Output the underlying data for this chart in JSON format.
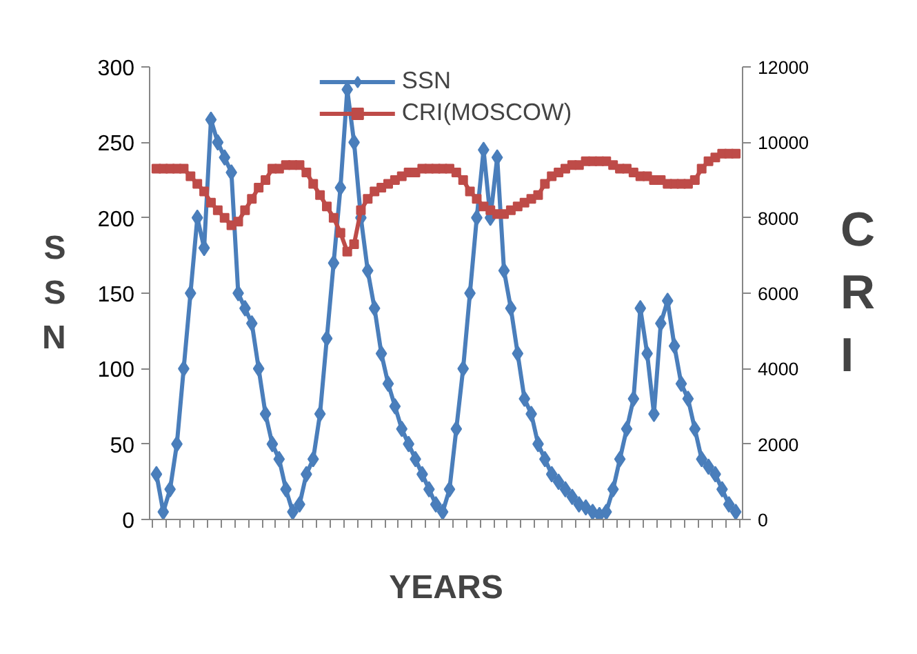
{
  "chart_data": {
    "type": "line",
    "xlabel": "YEARS",
    "ylabel": "SSN",
    "y2label": "CRI",
    "categories": [
      null,
      null,
      null,
      null,
      null,
      null,
      null,
      null,
      null,
      null,
      null,
      null,
      null,
      null,
      null,
      null,
      null,
      null,
      null,
      null,
      null,
      null,
      null,
      null,
      null,
      null,
      null,
      null,
      null,
      null,
      null,
      null,
      null,
      null,
      null,
      null,
      null,
      null,
      null,
      null,
      null,
      null,
      null,
      null,
      null,
      null,
      null,
      null,
      null,
      null,
      null,
      null,
      null,
      null,
      null,
      null,
      null,
      null,
      null,
      null,
      null,
      null,
      null,
      null,
      null,
      null,
      null,
      null,
      null,
      null,
      null,
      null,
      null,
      null,
      null,
      null,
      null,
      null,
      null,
      null,
      null,
      null,
      null,
      null,
      null,
      null
    ],
    "ylim": [
      0,
      300
    ],
    "yticks": [
      0,
      50,
      100,
      150,
      200,
      250,
      300
    ],
    "y2lim": [
      0,
      12000
    ],
    "y2ticks": [
      0,
      2000,
      4000,
      6000,
      8000,
      10000,
      12000
    ],
    "grid": false,
    "legend": "top",
    "line_style": "solid",
    "series": [
      {
        "name": "SSN",
        "color": "#4a7ebb",
        "marker": "diamond",
        "values": [
          30,
          5,
          20,
          50,
          100,
          150,
          200,
          180,
          265,
          250,
          240,
          230,
          150,
          140,
          130,
          100,
          70,
          50,
          40,
          20,
          5,
          10,
          30,
          40,
          70,
          120,
          170,
          220,
          285,
          250,
          200,
          165,
          140,
          110,
          90,
          75,
          60,
          50,
          40,
          30,
          20,
          10,
          5,
          20,
          60,
          100,
          150,
          200,
          245,
          200,
          240,
          165,
          140,
          110,
          80,
          70,
          50,
          40,
          30,
          25,
          20,
          15,
          10,
          8,
          5,
          3,
          5,
          20,
          40,
          60,
          80,
          140,
          110,
          70,
          130,
          145,
          115,
          90,
          80,
          60,
          40,
          35,
          30,
          20,
          10,
          5
        ]
      },
      {
        "name": "CRI(MOSCOW)",
        "color": "#be4b48",
        "marker": "square",
        "axis": "y2",
        "values": [
          9300,
          9300,
          9300,
          9300,
          9300,
          9100,
          8900,
          8700,
          8400,
          8200,
          8000,
          7800,
          7900,
          8200,
          8500,
          8800,
          9000,
          9300,
          9300,
          9400,
          9400,
          9400,
          9200,
          8900,
          8600,
          8300,
          8000,
          7600,
          7100,
          7300,
          8200,
          8500,
          8700,
          8800,
          8900,
          9000,
          9100,
          9200,
          9200,
          9300,
          9300,
          9300,
          9300,
          9300,
          9200,
          9000,
          8700,
          8500,
          8300,
          8200,
          8100,
          8100,
          8200,
          8300,
          8400,
          8500,
          8600,
          8900,
          9100,
          9200,
          9300,
          9400,
          9400,
          9500,
          9500,
          9500,
          9500,
          9400,
          9300,
          9300,
          9200,
          9100,
          9100,
          9000,
          9000,
          8900,
          8900,
          8900,
          8900,
          9000,
          9300,
          9500,
          9600,
          9700,
          9700,
          9700
        ]
      }
    ]
  }
}
